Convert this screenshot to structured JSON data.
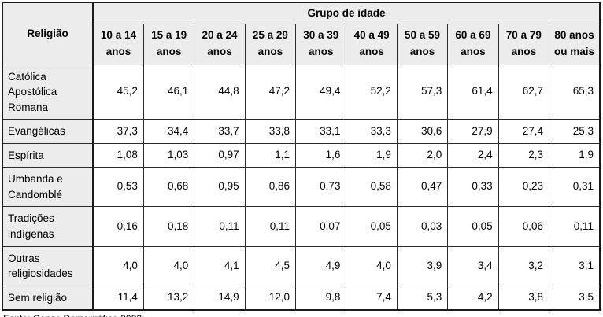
{
  "page": {
    "footer_source": "Fonte: Censo Demográfico 2022."
  },
  "table": {
    "religion_header": "Religião",
    "age_group_header": "Grupo de idade",
    "age_groups": [
      [
        "10 a 14",
        "anos"
      ],
      [
        "15 a 19",
        "anos"
      ],
      [
        "20 a 24",
        "anos"
      ],
      [
        "25 a 29",
        "anos"
      ],
      [
        "30 a 39",
        "anos"
      ],
      [
        "40 a 49",
        "anos"
      ],
      [
        "50 a 59",
        "anos"
      ],
      [
        "60 a 69",
        "anos"
      ],
      [
        "70 a 79",
        "anos"
      ],
      [
        "80 anos",
        "ou mais"
      ]
    ],
    "rows": [
      {
        "religion": "Católica Apostólica Romana",
        "values": [
          "45,2",
          "46,1",
          "44,8",
          "47,2",
          "49,4",
          "52,2",
          "57,3",
          "61,4",
          "62,7",
          "65,3"
        ]
      },
      {
        "religion": "Evangélicas",
        "values": [
          "37,3",
          "34,4",
          "33,7",
          "33,8",
          "33,1",
          "33,3",
          "30,6",
          "27,9",
          "27,4",
          "25,3"
        ]
      },
      {
        "religion": "Espírita",
        "values": [
          "1,08",
          "1,03",
          "0,97",
          "1,1",
          "1,6",
          "1,9",
          "2,0",
          "2,4",
          "2,3",
          "1,9"
        ]
      },
      {
        "religion": "Umbanda e Candomblé",
        "values": [
          "0,53",
          "0,68",
          "0,95",
          "0,86",
          "0,73",
          "0,58",
          "0,47",
          "0,33",
          "0,23",
          "0,31"
        ]
      },
      {
        "religion": "Tradições indígenas",
        "values": [
          "0,16",
          "0,18",
          "0,11",
          "0,11",
          "0,07",
          "0,05",
          "0,03",
          "0,05",
          "0,06",
          "0,11"
        ]
      },
      {
        "religion": "Outras religiosidades",
        "values": [
          "4,0",
          "4,0",
          "4,1",
          "4,5",
          "4,9",
          "4,0",
          "3,9",
          "3,4",
          "3,2",
          "3,1"
        ]
      },
      {
        "religion": "Sem religião",
        "values": [
          "11,4",
          "13,2",
          "14,9",
          "12,0",
          "9,8",
          "7,4",
          "5,3",
          "4,2",
          "3,8",
          "3,5"
        ]
      }
    ]
  },
  "colors": {
    "header_bg": "#ececec",
    "cell_bg": "#ffffff",
    "border": "#1a1a1a",
    "text": "#000000"
  },
  "chart_data": {
    "type": "table",
    "title": "",
    "column_group_label": "Grupo de idade",
    "columns": [
      "Religião",
      "10 a 14 anos",
      "15 a 19 anos",
      "20 a 24 anos",
      "25 a 29 anos",
      "30 a 39 anos",
      "40 a 49 anos",
      "50 a 59 anos",
      "60 a 69 anos",
      "70 a 79 anos",
      "80 anos ou mais"
    ],
    "rows": [
      [
        "Católica Apostólica Romana",
        45.2,
        46.1,
        44.8,
        47.2,
        49.4,
        52.2,
        57.3,
        61.4,
        62.7,
        65.3
      ],
      [
        "Evangélicas",
        37.3,
        34.4,
        33.7,
        33.8,
        33.1,
        33.3,
        30.6,
        27.9,
        27.4,
        25.3
      ],
      [
        "Espírita",
        1.08,
        1.03,
        0.97,
        1.1,
        1.6,
        1.9,
        2.0,
        2.4,
        2.3,
        1.9
      ],
      [
        "Umbanda e Candomblé",
        0.53,
        0.68,
        0.95,
        0.86,
        0.73,
        0.58,
        0.47,
        0.33,
        0.23,
        0.31
      ],
      [
        "Tradições indígenas",
        0.16,
        0.18,
        0.11,
        0.11,
        0.07,
        0.05,
        0.03,
        0.05,
        0.06,
        0.11
      ],
      [
        "Outras religiosidades",
        4.0,
        4.0,
        4.1,
        4.5,
        4.9,
        4.0,
        3.9,
        3.4,
        3.2,
        3.1
      ],
      [
        "Sem religião",
        11.4,
        13.2,
        14.9,
        12.0,
        9.8,
        7.4,
        5.3,
        4.2,
        3.8,
        3.5
      ]
    ],
    "unit": "percent",
    "decimal_separator": ",",
    "source": "Fonte: Censo Demográfico 2022."
  }
}
